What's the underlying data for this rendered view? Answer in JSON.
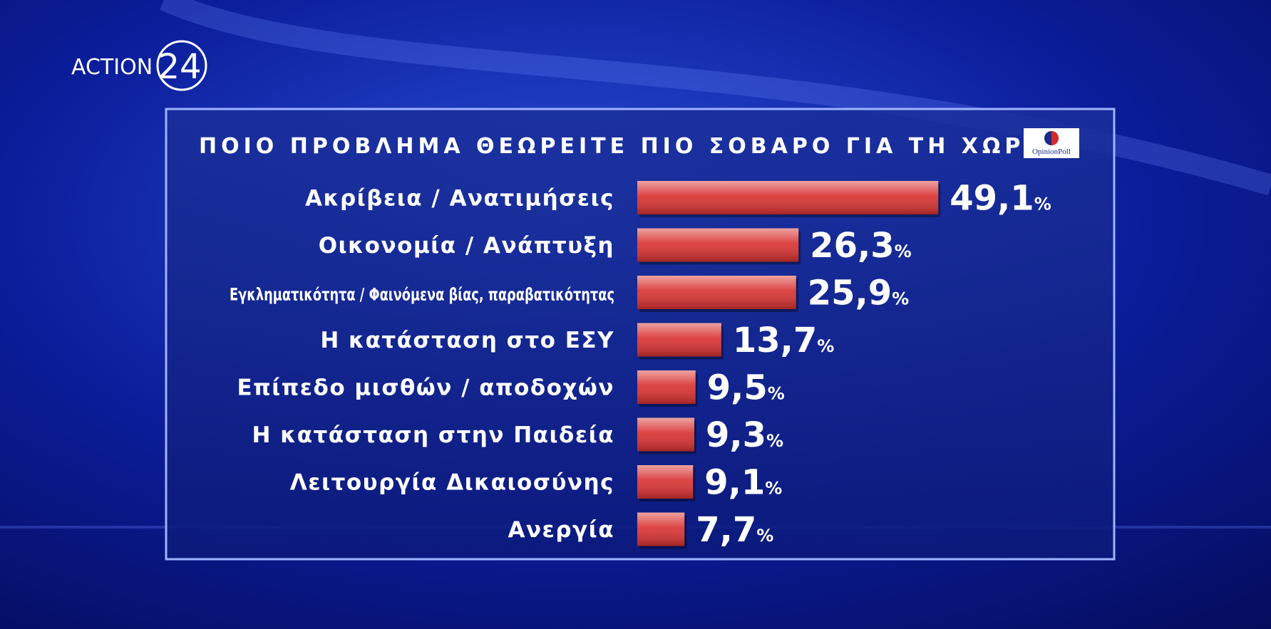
{
  "chart_data": {
    "type": "bar",
    "orientation": "horizontal",
    "title": "ΠΟΙΟ ΠΡΟΒΛΗΜΑ ΘΕΩΡΕΙΤΕ ΠΙΟ ΣΟΒΑΡΟ ΓΙΑ ΤΗ ΧΩΡΑ;",
    "channel_logo": {
      "name": "ACTION",
      "number": "24"
    },
    "source_logo": "OpinionPoll",
    "categories": [
      "Ακρίβεια / Ανατιμήσεις",
      "Οικονομία / Ανάπτυξη",
      "Εγκληματικότητα / Φαινόμενα βίας, παραβατικότητας",
      "Η κατάσταση στο ΕΣΥ",
      "Επίπεδο μισθών / αποδοχών",
      "Η κατάσταση στην Παιδεία",
      "Λειτουργία Δικαιοσύνης",
      "Ανεργία"
    ],
    "values": [
      49.1,
      26.3,
      25.9,
      13.7,
      9.5,
      9.3,
      9.1,
      7.7
    ],
    "value_labels": [
      "49,1",
      "26,3",
      "25,9",
      "13,7",
      "9,5",
      "9,3",
      "9,1",
      "7,7"
    ],
    "unit": "%",
    "color": "#d8302f"
  }
}
